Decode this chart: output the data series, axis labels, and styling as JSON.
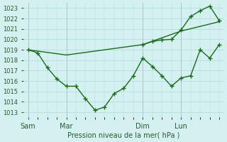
{
  "title": "",
  "xlabel": "Pression niveau de la mer( hPa )",
  "ylabel": "",
  "background_color": "#d4f0f0",
  "grid_color": "#b0d8d8",
  "line_color": "#1a6b1a",
  "ylim": [
    1012.5,
    1023.5
  ],
  "yticks": [
    1013,
    1014,
    1015,
    1016,
    1017,
    1018,
    1019,
    1020,
    1021,
    1022,
    1023
  ],
  "day_labels": [
    "Sam",
    "Mar",
    "Dim",
    "Lun"
  ],
  "day_positions": [
    0,
    4,
    12,
    16
  ],
  "line1_x": [
    0,
    1,
    2,
    3,
    4,
    5,
    6,
    7,
    8,
    9,
    10,
    11,
    12,
    13,
    14,
    15,
    16,
    17,
    18,
    19,
    20
  ],
  "line1_y": [
    1019.0,
    1018.7,
    1017.3,
    1016.2,
    1015.5,
    1015.5,
    1014.3,
    1013.2,
    1013.5,
    1014.8,
    1015.3,
    1016.5,
    1018.2,
    1017.4,
    1016.5,
    1015.5,
    1016.3,
    1016.5,
    1019.0,
    1018.2,
    1019.5
  ],
  "line2_x": [
    0,
    4,
    12,
    16,
    20
  ],
  "line2_y": [
    1019.0,
    1018.5,
    1019.5,
    1020.8,
    1021.7
  ],
  "line3_x": [
    12,
    13,
    14,
    15,
    16,
    17,
    18,
    19,
    20
  ],
  "line3_y": [
    1019.5,
    1019.8,
    1019.95,
    1020.0,
    1020.9,
    1022.2,
    1022.75,
    1023.2,
    1021.8
  ],
  "vline_positions": [
    0,
    4,
    12,
    16
  ],
  "total_points": 21
}
